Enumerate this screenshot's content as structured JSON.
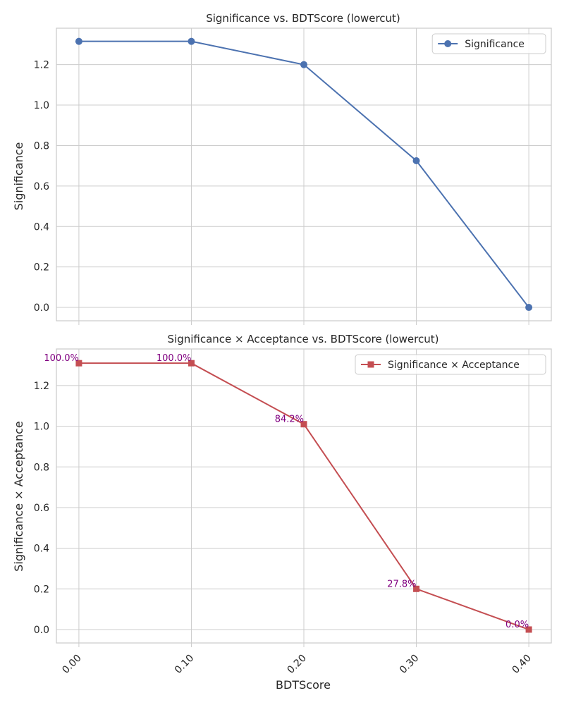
{
  "chart_data": [
    {
      "type": "line",
      "title": "Significance vs. BDTScore (lowercut)",
      "xlabel": "",
      "ylabel": "Significance",
      "x": [
        0.0,
        0.1,
        0.2,
        0.3,
        0.4
      ],
      "series": [
        {
          "name": "Significance",
          "values": [
            1.315,
            1.315,
            1.2,
            0.725,
            0.0
          ],
          "color": "#4c72b0",
          "marker": "circle"
        }
      ],
      "xlim": [
        -0.02,
        0.42
      ],
      "ylim": [
        -0.066,
        1.38
      ],
      "yticks": [
        "0.0",
        "0.2",
        "0.4",
        "0.6",
        "0.8",
        "1.0",
        "1.2"
      ],
      "grid": true,
      "legend_position": "top-right"
    },
    {
      "type": "line",
      "title": "Significance × Acceptance vs. BDTScore (lowercut)",
      "xlabel": "BDTScore",
      "ylabel": "Significance × Acceptance",
      "x": [
        0.0,
        0.1,
        0.2,
        0.3,
        0.4
      ],
      "xticks": [
        "0.00",
        "0.10",
        "0.20",
        "0.30",
        "0.40"
      ],
      "series": [
        {
          "name": "Significance × Acceptance",
          "values": [
            1.31,
            1.31,
            1.01,
            0.2,
            0.0
          ],
          "color": "#c44e52",
          "marker": "square"
        }
      ],
      "annotations": [
        "100.0%",
        "100.0%",
        "84.2%",
        "27.8%",
        "0.0%"
      ],
      "xlim": [
        -0.02,
        0.42
      ],
      "ylim": [
        -0.066,
        1.38
      ],
      "yticks": [
        "0.0",
        "0.2",
        "0.4",
        "0.6",
        "0.8",
        "1.0",
        "1.2"
      ],
      "grid": true,
      "legend_position": "top-right"
    }
  ]
}
